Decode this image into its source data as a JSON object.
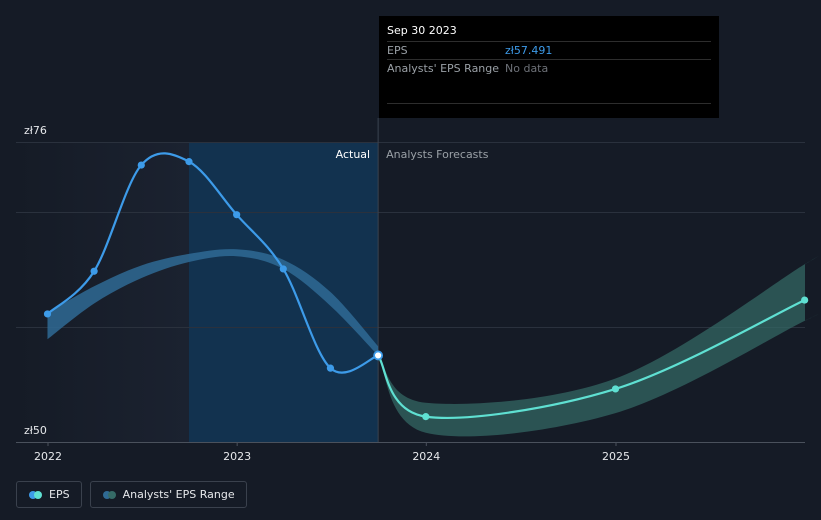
{
  "chart_data": {
    "type": "line",
    "title": "",
    "y_unit": "zł",
    "ylim": [
      50,
      76
    ],
    "ytick_labels": [
      "zł76",
      "zł50"
    ],
    "x_ticks": [
      "2022",
      "2023",
      "2024",
      "2025"
    ],
    "xlim": [
      "2021-12",
      "2025-12"
    ],
    "sections": {
      "actual_label": "Actual",
      "forecast_label": "Analysts Forecasts",
      "split_date": "2023-09-30"
    },
    "series": [
      {
        "name": "EPS",
        "color": "#3d9be9",
        "points": [
          {
            "x": "2021-12-31",
            "y": 61.1
          },
          {
            "x": "2022-03-31",
            "y": 64.8
          },
          {
            "x": "2022-06-30",
            "y": 74.0
          },
          {
            "x": "2022-09-30",
            "y": 74.3
          },
          {
            "x": "2022-12-31",
            "y": 69.7
          },
          {
            "x": "2023-03-31",
            "y": 65.0
          },
          {
            "x": "2023-06-30",
            "y": 56.4
          },
          {
            "x": "2023-09-30",
            "y": 57.5
          }
        ]
      },
      {
        "name": "EPS Forecast",
        "color": "#5fe0d2",
        "points": [
          {
            "x": "2023-09-30",
            "y": 57.5
          },
          {
            "x": "2023-12-31",
            "y": 52.2
          },
          {
            "x": "2024-12-31",
            "y": 54.6
          },
          {
            "x": "2025-12-31",
            "y": 62.3
          }
        ]
      }
    ],
    "range_bands": [
      {
        "name": "Analysts' EPS Range",
        "color": "#2f6a94",
        "x": [
          "2021-12-31",
          "2022-03-31",
          "2022-06-30",
          "2022-09-30",
          "2022-12-31",
          "2023-03-31",
          "2023-06-30",
          "2023-09-30"
        ],
        "low": [
          58.9,
          62.0,
          64.2,
          65.6,
          66.1,
          65.0,
          61.8,
          57.5
        ],
        "high": [
          61.2,
          63.5,
          65.3,
          66.3,
          66.7,
          65.8,
          63.0,
          58.3
        ]
      },
      {
        "name": "Analysts' EPS Range Forecast",
        "color": "#356b67",
        "x": [
          "2023-09-30",
          "2023-12-31",
          "2024-12-31",
          "2025-12-31"
        ],
        "low": [
          57.5,
          50.8,
          52.5,
          60.5
        ],
        "high": [
          57.5,
          53.4,
          55.5,
          65.4
        ]
      }
    ],
    "grid": true,
    "legend": {
      "position": "bottom-left"
    }
  },
  "tooltip": {
    "date": "Sep 30 2023",
    "eps_label": "EPS",
    "eps_value": "zł57.491",
    "range_label": "Analysts' EPS Range",
    "range_value": "No data"
  },
  "legend_items": {
    "eps": "EPS",
    "range": "Analysts' EPS Range"
  },
  "colors": {
    "background": "#151b26",
    "eps_line": "#3d9be9",
    "forecast_line": "#5fe0d2",
    "past_band": "#2f6a94",
    "future_band": "#356b67",
    "highlight": "#12324f"
  }
}
